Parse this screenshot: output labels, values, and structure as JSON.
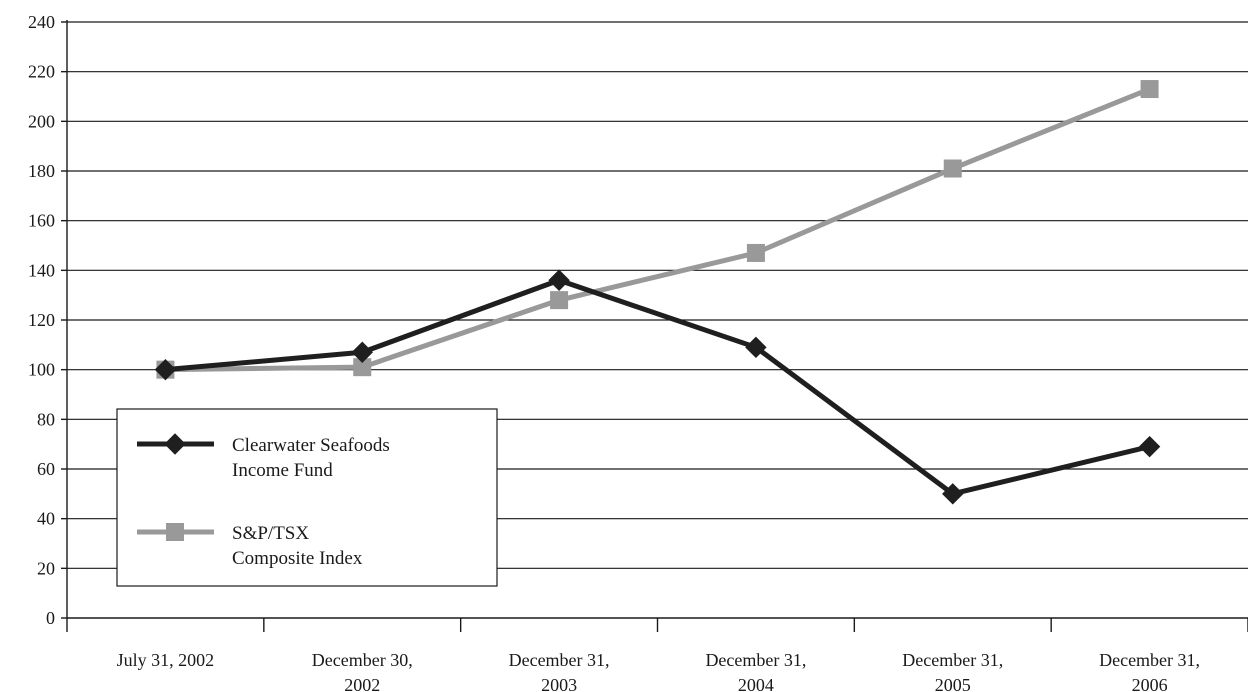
{
  "chart_data": {
    "type": "line",
    "title": "",
    "xlabel": "",
    "ylabel": "",
    "ylim": [
      0,
      240
    ],
    "y_ticks": [
      "0",
      "20",
      "40",
      "60",
      "80",
      "100",
      "120",
      "140",
      "160",
      "180",
      "200",
      "220",
      "240"
    ],
    "grid": true,
    "legend_position": "bottom-left",
    "categories": [
      [
        "July 31, 2002"
      ],
      [
        "December 30,",
        "2002"
      ],
      [
        "December 31,",
        "2003"
      ],
      [
        "December 31,",
        "2004"
      ],
      [
        "December 31,",
        "2005"
      ],
      [
        "December 31,",
        "2006"
      ]
    ],
    "series": [
      {
        "name": "Clearwater Seafoods Income Fund",
        "legend_lines": [
          "Clearwater Seafoods",
          "Income Fund"
        ],
        "values": [
          100,
          107,
          136,
          109,
          50,
          69
        ],
        "color": "#1f1f1f",
        "marker": "diamond"
      },
      {
        "name": "S&P/TSX Composite Index",
        "legend_lines": [
          "S&P/TSX",
          "Composite Index"
        ],
        "values": [
          100,
          101,
          128,
          147,
          181,
          213
        ],
        "color": "#999999",
        "marker": "square"
      }
    ]
  }
}
